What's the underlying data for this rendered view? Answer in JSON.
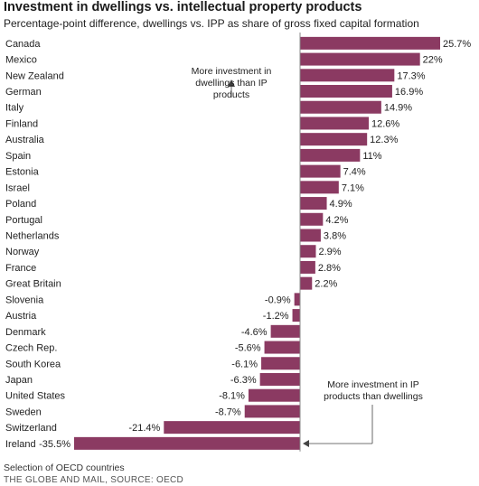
{
  "header": {
    "title": "Investment in dwellings vs. intellectual property products",
    "subtitle": "Percentage-point difference, dwellings vs. IPP as share of gross fixed capital formation"
  },
  "annotations": {
    "top": "More investment in dwellings than IP products",
    "bottom": "More investment in IP products than dwellings"
  },
  "footer": {
    "note": "Selection of OECD countries",
    "source": "THE GLOBE AND MAIL, SOURCE: OECD"
  },
  "colors": {
    "bar": "#8b3a62",
    "axis": "#888888",
    "text": "#222222"
  },
  "chart_data": {
    "type": "bar",
    "orientation": "horizontal",
    "categories": [
      "Canada",
      "Mexico",
      "New Zealand",
      "German",
      "Italy",
      "Finland",
      "Australia",
      "Spain",
      "Estonia",
      "Israel",
      "Poland",
      "Portugal",
      "Netherlands",
      "Norway",
      "France",
      "Great Britain",
      "Slovenia",
      "Austria",
      "Denmark",
      "Czech Rep.",
      "South Korea",
      "Japan",
      "United States",
      "Sweden",
      "Switzerland",
      "Ireland"
    ],
    "values": [
      25.7,
      22,
      17.3,
      16.9,
      14.9,
      12.6,
      12.3,
      11,
      7.4,
      7.1,
      4.9,
      4.2,
      3.8,
      2.9,
      2.8,
      2.2,
      -0.9,
      -1.2,
      -4.6,
      -5.6,
      -6.1,
      -6.3,
      -8.1,
      -8.7,
      -21.4,
      -35.5
    ],
    "value_labels": [
      "25.7%",
      "22%",
      "17.3%",
      "16.9%",
      "14.9%",
      "12.6%",
      "12.3%",
      "11%",
      "7.4%",
      "7.1%",
      "4.9%",
      "4.2%",
      "3.8%",
      "2.9%",
      "2.8%",
      "2.2%",
      "-0.9%",
      "-1.2%",
      "-4.6%",
      "-5.6%",
      "-6.1%",
      "-6.3%",
      "-8.1%",
      "-8.7%",
      "-21.4%",
      "-35.5%"
    ],
    "title": "Investment in dwellings vs. intellectual property products",
    "subtitle": "Percentage-point difference, dwellings vs. IPP as share of gross fixed capital formation",
    "xlabel": "",
    "ylabel": "",
    "xlim": [
      -35.5,
      25.7
    ],
    "grid": false,
    "legend": "none"
  }
}
